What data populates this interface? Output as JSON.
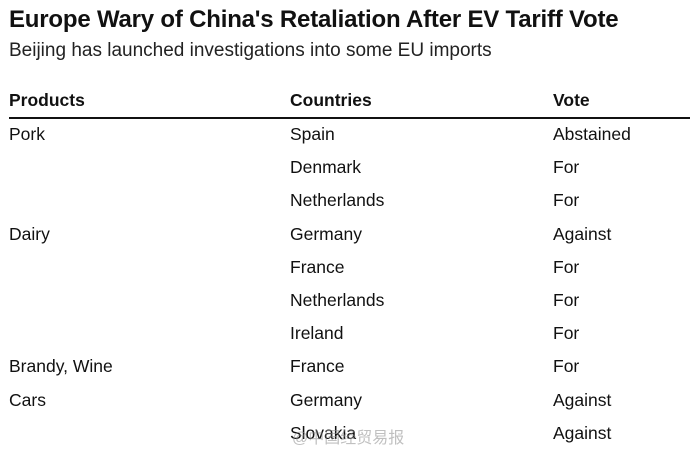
{
  "title": "Europe Wary of China's Retaliation After EV Tariff Vote",
  "subtitle": "Beijing has launched investigations into some EU imports",
  "table": {
    "headers": [
      "Products",
      "Countries",
      "Vote"
    ],
    "rows": [
      [
        "Pork",
        "Spain",
        "Abstained"
      ],
      [
        "",
        "Denmark",
        "For"
      ],
      [
        "",
        "Netherlands",
        "For"
      ],
      [
        "Dairy",
        "Germany",
        "Against"
      ],
      [
        "",
        "France",
        "For"
      ],
      [
        "",
        "Netherlands",
        "For"
      ],
      [
        "",
        "Ireland",
        "For"
      ],
      [
        "Brandy, Wine",
        "France",
        "For"
      ],
      [
        "Cars",
        "Germany",
        "Against"
      ],
      [
        "",
        "Slovakia",
        "Against"
      ]
    ]
  },
  "watermark": "@中国经贸易报"
}
